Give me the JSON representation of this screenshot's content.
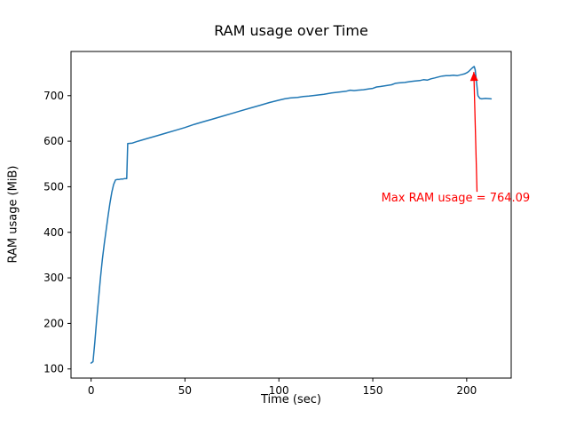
{
  "chart_data": {
    "type": "line",
    "title": "RAM usage over Time",
    "xlabel": "Time (sec)",
    "ylabel": "RAM usage (MiB)",
    "line_color": "#1f77b4",
    "background_color": "#ffffff",
    "grid": false,
    "legend": false,
    "xlim": [
      -10.7,
      223.7
    ],
    "ylim": [
      80,
      797
    ],
    "xticks": [
      0,
      50,
      100,
      150,
      200
    ],
    "yticks": [
      100,
      200,
      300,
      400,
      500,
      600,
      700
    ],
    "x": [
      0,
      1,
      2,
      3,
      4,
      5,
      6,
      7,
      8,
      9,
      10,
      11,
      12,
      13,
      14,
      15,
      16,
      17,
      18,
      19,
      19.5,
      22,
      25,
      30,
      35,
      40,
      45,
      50,
      55,
      60,
      65,
      70,
      75,
      80,
      85,
      90,
      95,
      100,
      103,
      106,
      110,
      113,
      116,
      120,
      124,
      128,
      132,
      136,
      138,
      140,
      142,
      145,
      148,
      150,
      152,
      154,
      157,
      160,
      162,
      164,
      167,
      170,
      172,
      175,
      177,
      179,
      181,
      183,
      185,
      187,
      189,
      191,
      193,
      195,
      197,
      199,
      200,
      201,
      202,
      203,
      204,
      204.5,
      205,
      206,
      207,
      208,
      210,
      213
    ],
    "y": [
      113,
      116,
      160,
      210,
      255,
      300,
      340,
      375,
      405,
      435,
      463,
      487,
      505,
      515,
      516,
      516,
      517,
      517,
      518,
      518,
      595,
      596,
      600,
      606,
      612,
      618,
      624,
      630,
      637,
      643,
      649,
      655,
      661,
      667,
      673,
      679,
      685,
      690,
      693,
      695,
      696,
      698,
      699,
      701,
      703,
      706,
      708,
      710,
      712,
      711,
      712,
      713,
      715,
      716,
      719,
      720,
      722,
      724,
      727,
      728,
      729,
      731,
      732,
      733,
      735,
      734,
      737,
      739,
      741,
      743,
      744,
      744,
      745,
      744,
      746,
      748,
      750,
      753,
      757,
      761,
      764.09,
      757,
      740,
      700,
      694,
      693,
      694,
      693
    ],
    "annotation": {
      "text": "Max RAM usage = 764.09",
      "color": "#ff0000",
      "text_pos": [
        154.5,
        468
      ],
      "arrow_from": [
        205.5,
        489
      ],
      "arrow_to": [
        203.8,
        752
      ]
    }
  }
}
